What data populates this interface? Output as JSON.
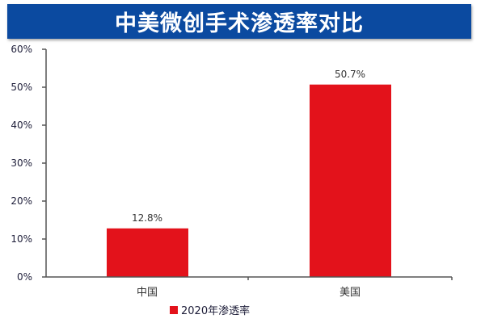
{
  "title": "中美微创手术渗透率对比",
  "colors": {
    "banner": "#0b4aa0",
    "bar": "#e3121b",
    "axis": "#555555"
  },
  "chart_data": {
    "type": "bar",
    "title": "中美微创手术渗透率对比",
    "categories": [
      "中国",
      "美国"
    ],
    "series": [
      {
        "name": "2020年渗透率",
        "values": [
          12.8,
          50.7
        ]
      }
    ],
    "value_labels": [
      "12.8%",
      "50.7%"
    ],
    "xlabel": "",
    "ylabel": "",
    "ylim": [
      0,
      60
    ],
    "yticks": [
      "0%",
      "10%",
      "20%",
      "30%",
      "40%",
      "50%",
      "60%"
    ],
    "grid": false,
    "legend_position": "bottom"
  },
  "legend": {
    "label": "2020年渗透率"
  }
}
